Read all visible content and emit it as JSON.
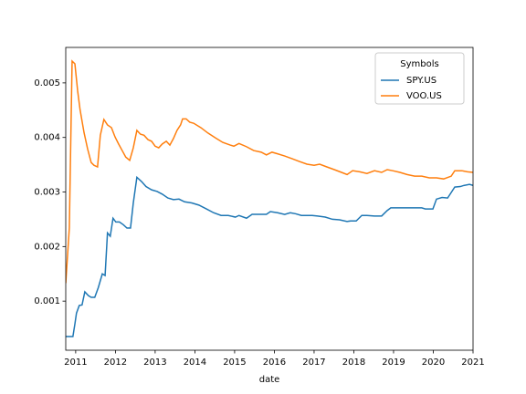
{
  "chart_data": {
    "type": "line",
    "x_label": "date",
    "legend_title": "Symbols",
    "legend": "upper right",
    "xlim": [
      2010.75,
      2021.0
    ],
    "xticks": [
      2011,
      2012,
      2013,
      2014,
      2015,
      2016,
      2017,
      2018,
      2019,
      2020,
      2021
    ],
    "ylim": [
      0.0001,
      0.00565
    ],
    "yticks": [
      0.001,
      0.002,
      0.003,
      0.004,
      0.005
    ],
    "series": [
      {
        "name": "SPY.US",
        "color": "#1f77b4",
        "x": [
          2010.75,
          2010.93,
          2010.98,
          2011.02,
          2011.09,
          2011.16,
          2011.23,
          2011.32,
          2011.39,
          2011.48,
          2011.57,
          2011.67,
          2011.74,
          2011.8,
          2011.87,
          2011.94,
          2012.01,
          2012.1,
          2012.2,
          2012.29,
          2012.38,
          2012.45,
          2012.54,
          2012.66,
          2012.77,
          2012.91,
          2013.05,
          2013.18,
          2013.32,
          2013.46,
          2013.6,
          2013.74,
          2013.92,
          2014.1,
          2014.29,
          2014.47,
          2014.66,
          2014.84,
          2015.02,
          2015.11,
          2015.3,
          2015.44,
          2015.57,
          2015.8,
          2015.9,
          2016.08,
          2016.26,
          2016.4,
          2016.54,
          2016.68,
          2016.82,
          2016.95,
          2017.09,
          2017.28,
          2017.46,
          2017.64,
          2017.83,
          2017.92,
          2018.06,
          2018.2,
          2018.33,
          2018.52,
          2018.7,
          2018.84,
          2018.93,
          2019.07,
          2019.21,
          2019.39,
          2019.57,
          2019.71,
          2019.8,
          2019.99,
          2020.08,
          2020.22,
          2020.36,
          2020.45,
          2020.54,
          2020.68,
          2020.77,
          2020.91,
          2021.0
        ],
        "values": [
          0.00035,
          0.00035,
          0.00058,
          0.00078,
          0.00092,
          0.00093,
          0.00117,
          0.0011,
          0.00107,
          0.00107,
          0.00125,
          0.0015,
          0.00147,
          0.00225,
          0.00219,
          0.00252,
          0.00245,
          0.00245,
          0.0024,
          0.00234,
          0.00234,
          0.0028,
          0.00327,
          0.00319,
          0.0031,
          0.00304,
          0.00301,
          0.00296,
          0.00289,
          0.00286,
          0.00287,
          0.00282,
          0.0028,
          0.00276,
          0.00269,
          0.00262,
          0.00257,
          0.00257,
          0.00254,
          0.00257,
          0.00252,
          0.00259,
          0.00259,
          0.00259,
          0.00264,
          0.00262,
          0.00259,
          0.00262,
          0.0026,
          0.00257,
          0.00257,
          0.00257,
          0.00256,
          0.00254,
          0.0025,
          0.00249,
          0.00246,
          0.00247,
          0.00247,
          0.00257,
          0.00257,
          0.00256,
          0.00256,
          0.00266,
          0.00271,
          0.00271,
          0.00271,
          0.00271,
          0.00271,
          0.00271,
          0.00269,
          0.00269,
          0.00287,
          0.0029,
          0.00289,
          0.00299,
          0.00309,
          0.0031,
          0.00312,
          0.00314,
          0.00312
        ]
      },
      {
        "name": "VOO.US",
        "color": "#ff7f0e",
        "x": [
          2010.75,
          2010.84,
          2010.91,
          2010.98,
          2011.05,
          2011.11,
          2011.21,
          2011.3,
          2011.39,
          2011.46,
          2011.55,
          2011.62,
          2011.71,
          2011.8,
          2011.9,
          2011.99,
          2012.08,
          2012.17,
          2012.26,
          2012.36,
          2012.45,
          2012.54,
          2012.63,
          2012.72,
          2012.82,
          2012.91,
          2013.0,
          2013.09,
          2013.18,
          2013.28,
          2013.37,
          2013.46,
          2013.55,
          2013.64,
          2013.69,
          2013.78,
          2013.87,
          2013.97,
          2014.15,
          2014.33,
          2014.52,
          2014.7,
          2014.89,
          2014.98,
          2015.11,
          2015.3,
          2015.48,
          2015.67,
          2015.8,
          2015.94,
          2016.08,
          2016.26,
          2016.45,
          2016.63,
          2016.82,
          2017.0,
          2017.14,
          2017.32,
          2017.51,
          2017.69,
          2017.83,
          2017.97,
          2018.15,
          2018.33,
          2018.52,
          2018.7,
          2018.84,
          2018.98,
          2019.16,
          2019.34,
          2019.53,
          2019.71,
          2019.9,
          2020.08,
          2020.26,
          2020.45,
          2020.54,
          2020.72,
          2020.86,
          2021.0
        ],
        "values": [
          0.00133,
          0.00234,
          0.0054,
          0.00535,
          0.00485,
          0.00451,
          0.00409,
          0.00379,
          0.00354,
          0.00349,
          0.00346,
          0.00404,
          0.00433,
          0.00423,
          0.00418,
          0.00401,
          0.00388,
          0.00376,
          0.00364,
          0.00358,
          0.00381,
          0.00413,
          0.00406,
          0.00404,
          0.00396,
          0.00393,
          0.00384,
          0.00381,
          0.00388,
          0.00393,
          0.00386,
          0.00398,
          0.00413,
          0.00423,
          0.00434,
          0.00434,
          0.00428,
          0.00426,
          0.00418,
          0.00408,
          0.00399,
          0.00391,
          0.00386,
          0.00384,
          0.00389,
          0.00383,
          0.00376,
          0.00373,
          0.00368,
          0.00373,
          0.0037,
          0.00366,
          0.00361,
          0.00356,
          0.00351,
          0.00349,
          0.00351,
          0.00346,
          0.00341,
          0.00336,
          0.00332,
          0.00339,
          0.00337,
          0.00334,
          0.00339,
          0.00336,
          0.00341,
          0.00339,
          0.00336,
          0.00332,
          0.00329,
          0.00329,
          0.00326,
          0.00326,
          0.00324,
          0.00329,
          0.00339,
          0.00339,
          0.00337,
          0.00336
        ]
      }
    ]
  }
}
